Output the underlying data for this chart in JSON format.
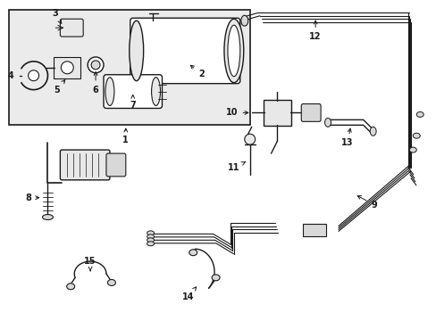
{
  "white": "#ffffff",
  "dark": "#1a1a1a",
  "gray": "#666666",
  "light_gray": "#d8d8d8",
  "box_bg": "#ebebeb",
  "comp_fill": "#e8e8e8"
}
